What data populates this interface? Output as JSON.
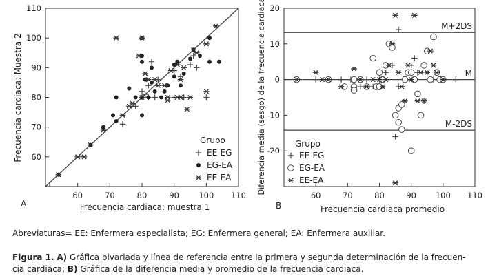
{
  "chart_data": [
    {
      "type": "scatter",
      "panel_letter": "A",
      "xlabel": "Frecuencia cardiaca: muestra 1",
      "ylabel": "Frecuencia cardiaca: Muestra 2",
      "xlim": [
        50,
        110
      ],
      "ylim": [
        50,
        110
      ],
      "x_ticks": [
        60,
        70,
        80,
        90,
        100,
        110
      ],
      "y_ticks": [
        60,
        70,
        80,
        90,
        100,
        110
      ],
      "reference_line": "identity",
      "legend_title": "Grupo",
      "legend": [
        {
          "name": "EE-EG",
          "marker": "plus"
        },
        {
          "name": "EG-EA",
          "marker": "dot"
        },
        {
          "name": "EE-EA",
          "marker": "star"
        }
      ],
      "series": [
        {
          "name": "EE-EG",
          "marker": "plus",
          "points": [
            [
              74,
              71
            ],
            [
              78,
              77
            ],
            [
              80,
              82
            ],
            [
              80,
              80
            ],
            [
              81,
              81
            ],
            [
              82,
              80
            ],
            [
              82,
              84
            ],
            [
              83,
              92
            ],
            [
              84,
              80
            ],
            [
              85,
              86
            ],
            [
              90,
              80
            ],
            [
              90,
              89
            ],
            [
              92,
              87
            ],
            [
              93,
              80
            ],
            [
              95,
              91
            ],
            [
              96,
              94
            ],
            [
              97,
              90
            ],
            [
              100,
              80
            ]
          ]
        },
        {
          "name": "EG-EA",
          "marker": "dot",
          "points": [
            [
              54,
              54
            ],
            [
              64,
              64
            ],
            [
              68,
              70
            ],
            [
              71,
              74
            ],
            [
              72,
              72
            ],
            [
              72,
              80
            ],
            [
              76,
              83
            ],
            [
              78,
              80
            ],
            [
              80,
              74
            ],
            [
              80,
              80
            ],
            [
              80,
              92
            ],
            [
              80,
              94
            ],
            [
              80,
              100
            ],
            [
              81,
              86
            ],
            [
              82,
              80
            ],
            [
              83,
              85
            ],
            [
              83,
              90
            ],
            [
              84,
              82
            ],
            [
              86,
              80
            ],
            [
              87,
              82
            ],
            [
              88,
              84
            ],
            [
              90,
              87
            ],
            [
              90,
              91
            ],
            [
              91,
              92
            ],
            [
              92,
              84
            ],
            [
              93,
              88
            ],
            [
              95,
              93
            ],
            [
              96,
              96
            ],
            [
              98,
              94
            ],
            [
              101,
              100
            ],
            [
              101,
              92
            ],
            [
              104,
              92
            ]
          ]
        },
        {
          "name": "EE-EA",
          "marker": "star",
          "points": [
            [
              54,
              54
            ],
            [
              60,
              60
            ],
            [
              62,
              60
            ],
            [
              64,
              64
            ],
            [
              68,
              69
            ],
            [
              72,
              100
            ],
            [
              74,
              74
            ],
            [
              76,
              77
            ],
            [
              77,
              78
            ],
            [
              79,
              94
            ],
            [
              80,
              80
            ],
            [
              80,
              100
            ],
            [
              81,
              88
            ],
            [
              82,
              86
            ],
            [
              84,
              86
            ],
            [
              85,
              84
            ],
            [
              87,
              84
            ],
            [
              88,
              79
            ],
            [
              88,
              80
            ],
            [
              89,
              89
            ],
            [
              91,
              80
            ],
            [
              91,
              91
            ],
            [
              92,
              80
            ],
            [
              92,
              86
            ],
            [
              93,
              90
            ],
            [
              94,
              76
            ],
            [
              95,
              80
            ],
            [
              96,
              96
            ],
            [
              97,
              95
            ],
            [
              100,
              98
            ],
            [
              100,
              82
            ],
            [
              103,
              104
            ]
          ]
        }
      ]
    },
    {
      "type": "scatter",
      "panel_letter": "B",
      "xlabel": "Frecuencia cardiaca promedio",
      "ylabel": "Diferencia media (sesgo) de la frecuencia cardiaca",
      "xlim": [
        50,
        110
      ],
      "ylim": [
        -30,
        20
      ],
      "x_ticks": [
        60,
        70,
        80,
        90,
        100,
        110
      ],
      "y_ticks": [
        -20,
        -10,
        0,
        10,
        20
      ],
      "reference_lines": [
        {
          "label": "M+2DS",
          "y": 13.2
        },
        {
          "label": "M",
          "y": 0
        },
        {
          "label": "M-2DS",
          "y": -14.2
        }
      ],
      "legend_title": "Grupo",
      "legend": [
        {
          "name": "EE-EG",
          "marker": "plus"
        },
        {
          "name": "EG-EA",
          "marker": "circle"
        },
        {
          "name": "EE-EA",
          "marker": "star"
        }
      ],
      "series": [
        {
          "name": "EE-EG",
          "marker": "plus",
          "points": [
            [
              54,
              0
            ],
            [
              60,
              0
            ],
            [
              64,
              0
            ],
            [
              68,
              0
            ],
            [
              71,
              0
            ],
            [
              74,
              -2
            ],
            [
              76,
              0
            ],
            [
              78,
              -2
            ],
            [
              80,
              0
            ],
            [
              82,
              2
            ],
            [
              84,
              4
            ],
            [
              85,
              -16
            ],
            [
              86,
              -2
            ],
            [
              86,
              14
            ],
            [
              88,
              -6
            ],
            [
              90,
              0
            ],
            [
              90,
              4
            ],
            [
              91,
              6
            ],
            [
              92,
              2
            ],
            [
              94,
              -6
            ],
            [
              95,
              2
            ],
            [
              97,
              0
            ],
            [
              99,
              0
            ],
            [
              100,
              0
            ],
            [
              104,
              0
            ]
          ]
        },
        {
          "name": "EG-EA",
          "marker": "circle",
          "points": [
            [
              54,
              0
            ],
            [
              64,
              0
            ],
            [
              69,
              -2
            ],
            [
              72,
              0
            ],
            [
              72,
              -2
            ],
            [
              72,
              -3
            ],
            [
              74,
              0
            ],
            [
              76,
              -2
            ],
            [
              78,
              6
            ],
            [
              79,
              -2
            ],
            [
              80,
              -2
            ],
            [
              80,
              2
            ],
            [
              81,
              0
            ],
            [
              82,
              4
            ],
            [
              83,
              10
            ],
            [
              84,
              9
            ],
            [
              85,
              -10
            ],
            [
              86,
              -12
            ],
            [
              86,
              -8
            ],
            [
              87,
              -14
            ],
            [
              87,
              -7
            ],
            [
              88,
              0
            ],
            [
              89,
              2
            ],
            [
              90,
              -20
            ],
            [
              90,
              2
            ],
            [
              91,
              0
            ],
            [
              92,
              -4
            ],
            [
              93,
              -10
            ],
            [
              94,
              4
            ],
            [
              95,
              8
            ],
            [
              96,
              0
            ],
            [
              97,
              12
            ],
            [
              98,
              2
            ],
            [
              99,
              0
            ],
            [
              100,
              0
            ]
          ]
        },
        {
          "name": "EE-EA",
          "marker": "star",
          "points": [
            [
              54,
              0
            ],
            [
              60,
              2
            ],
            [
              62,
              0
            ],
            [
              64,
              0
            ],
            [
              68,
              -2
            ],
            [
              72,
              3
            ],
            [
              74,
              0
            ],
            [
              76,
              -2
            ],
            [
              78,
              0
            ],
            [
              80,
              0
            ],
            [
              81,
              -2
            ],
            [
              82,
              0
            ],
            [
              83,
              4
            ],
            [
              84,
              10
            ],
            [
              85,
              -29
            ],
            [
              85,
              18
            ],
            [
              86,
              2
            ],
            [
              87,
              -2
            ],
            [
              88,
              -6
            ],
            [
              89,
              4
            ],
            [
              90,
              0
            ],
            [
              91,
              18
            ],
            [
              92,
              -6
            ],
            [
              93,
              2
            ],
            [
              94,
              -6
            ],
            [
              95,
              2
            ],
            [
              96,
              8
            ],
            [
              97,
              4
            ],
            [
              98,
              2
            ],
            [
              100,
              0
            ]
          ]
        }
      ]
    }
  ],
  "abbreviations": "Abreviaturas= EE: Enfermera especialista; EG: Enfermera general; EA: Enfermera auxiliar.",
  "caption": {
    "figure_label": "Figura 1.",
    "part_a_letter": "A)",
    "part_a_text": " Gráfica bivariada y línea de referencia entre la primera y segunda determinación de la frecuen-",
    "line2_start": "cia cardiaca; ",
    "part_b_letter": "B)",
    "part_b_text": " Gráfica de la diferencia media y promedio de la frecuencia cardiaca."
  }
}
